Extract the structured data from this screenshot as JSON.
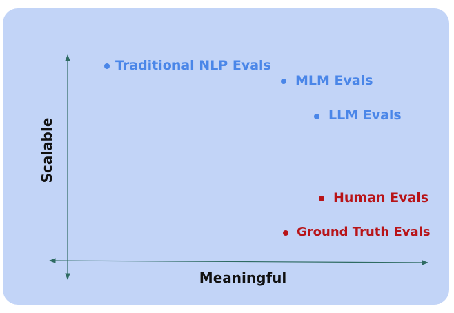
{
  "axes": {
    "y_label": "Scalable",
    "x_label": "Meaningful",
    "color": "#2e6b62"
  },
  "colors": {
    "background_panel": "#c2d4f7",
    "automated": "#4a86e8",
    "human": "#b81418"
  },
  "items": [
    {
      "label": "Traditional NLP Evals",
      "group": "automated"
    },
    {
      "label": "MLM Evals",
      "group": "automated"
    },
    {
      "label": "LLM Evals",
      "group": "automated"
    },
    {
      "label": "Human Evals",
      "group": "human"
    },
    {
      "label": "Ground Truth Evals",
      "group": "human"
    }
  ]
}
